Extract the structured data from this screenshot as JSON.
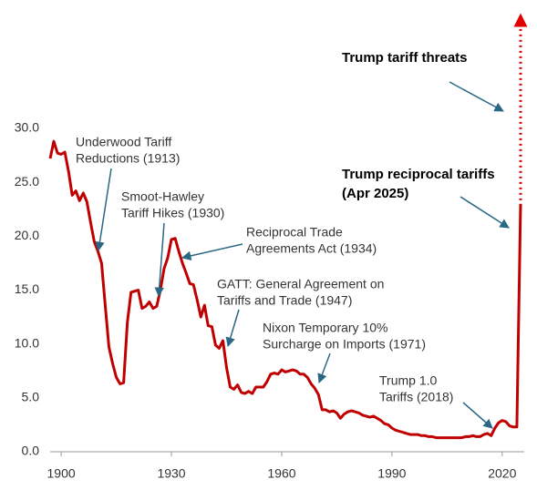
{
  "chart_data": {
    "type": "line",
    "x": [
      1897,
      1898,
      1899,
      1900,
      1901,
      1902,
      1903,
      1904,
      1905,
      1906,
      1907,
      1908,
      1909,
      1910,
      1911,
      1912,
      1913,
      1914,
      1915,
      1916,
      1917,
      1918,
      1919,
      1920,
      1921,
      1922,
      1923,
      1924,
      1925,
      1926,
      1927,
      1928,
      1929,
      1930,
      1931,
      1932,
      1933,
      1934,
      1935,
      1936,
      1937,
      1938,
      1939,
      1940,
      1941,
      1942,
      1943,
      1944,
      1945,
      1946,
      1947,
      1948,
      1949,
      1950,
      1951,
      1952,
      1953,
      1954,
      1955,
      1956,
      1957,
      1958,
      1959,
      1960,
      1961,
      1962,
      1963,
      1964,
      1965,
      1966,
      1967,
      1968,
      1969,
      1970,
      1971,
      1972,
      1973,
      1974,
      1975,
      1976,
      1977,
      1978,
      1979,
      1980,
      1981,
      1982,
      1983,
      1984,
      1985,
      1986,
      1987,
      1988,
      1989,
      1990,
      1991,
      1992,
      1993,
      1994,
      1995,
      1996,
      1997,
      1998,
      1999,
      2000,
      2001,
      2002,
      2003,
      2004,
      2005,
      2006,
      2007,
      2008,
      2009,
      2010,
      2011,
      2012,
      2013,
      2014,
      2015,
      2016,
      2017,
      2018,
      2019,
      2020,
      2021,
      2022,
      2023,
      2024,
      2025
    ],
    "series": [
      {
        "color": "#c00000",
        "values": [
          27.2,
          28.8,
          27.7,
          27.6,
          27.8,
          26.0,
          23.8,
          24.2,
          23.3,
          24.0,
          23.2,
          21.3,
          19.5,
          18.6,
          17.5,
          13.5,
          9.7,
          8.2,
          6.9,
          6.3,
          6.4,
          12.0,
          14.8,
          14.9,
          15.0,
          13.3,
          13.5,
          13.9,
          13.3,
          13.5,
          15.0,
          17.0,
          18.0,
          19.7,
          19.8,
          18.6,
          17.5,
          16.6,
          15.6,
          15.5,
          14.1,
          12.5,
          13.6,
          11.7,
          11.6,
          9.9,
          9.6,
          10.3,
          7.8,
          6.0,
          5.8,
          6.2,
          5.5,
          5.4,
          5.6,
          5.4,
          6.0,
          6.0,
          6.0,
          6.5,
          7.2,
          7.3,
          7.2,
          7.6,
          7.4,
          7.5,
          7.6,
          7.5,
          7.2,
          7.2,
          6.9,
          6.3,
          5.9,
          5.3,
          3.9,
          3.9,
          3.7,
          3.8,
          3.6,
          3.1,
          3.5,
          3.7,
          3.8,
          3.7,
          3.6,
          3.4,
          3.3,
          3.2,
          3.3,
          3.1,
          2.9,
          2.6,
          2.5,
          2.2,
          2.0,
          1.9,
          1.8,
          1.7,
          1.6,
          1.6,
          1.6,
          1.5,
          1.5,
          1.4,
          1.4,
          1.3,
          1.3,
          1.3,
          1.3,
          1.3,
          1.3,
          1.3,
          1.3,
          1.4,
          1.4,
          1.5,
          1.4,
          1.4,
          1.6,
          1.7,
          1.5,
          2.2,
          2.7,
          2.9,
          2.8,
          2.4,
          2.3,
          2.3,
          23.0
        ]
      }
    ],
    "xlim": [
      1897,
      2026
    ],
    "xticks": [
      1900,
      1930,
      1960,
      1990,
      2020
    ],
    "ylim": [
      0,
      30
    ],
    "yticks": [
      {
        "value": 0,
        "label": "0.0"
      },
      {
        "value": 5,
        "label": "5.0"
      },
      {
        "value": 10,
        "label": "10.0"
      },
      {
        "value": 15,
        "label": "15.0"
      },
      {
        "value": 20,
        "label": "20.0"
      },
      {
        "value": 25,
        "label": "25.0"
      },
      {
        "value": 30,
        "label": "30.0"
      }
    ],
    "grid": false,
    "annotations": [
      {
        "text": [
          "Underwood Tariff",
          "Reductions (1913)"
        ]
      },
      {
        "text": [
          "Smoot-Hawley",
          "Tariff Hikes (1930)"
        ]
      },
      {
        "text": [
          "Reciprocal Trade",
          "Agreements Act (1934)"
        ]
      },
      {
        "text": [
          "GATT: General Agreement on",
          "Tariffs and Trade (1947)"
        ]
      },
      {
        "text": [
          "Nixon Temporary 10%",
          "Surcharge on Imports (1971)"
        ]
      },
      {
        "text": [
          "Trump 1.0",
          "Tariffs (2018)"
        ]
      },
      {
        "text": [
          "Trump tariff threats"
        ]
      },
      {
        "text": [
          "Trump reciprocal tariffs",
          "(Apr 2025)"
        ]
      }
    ]
  }
}
